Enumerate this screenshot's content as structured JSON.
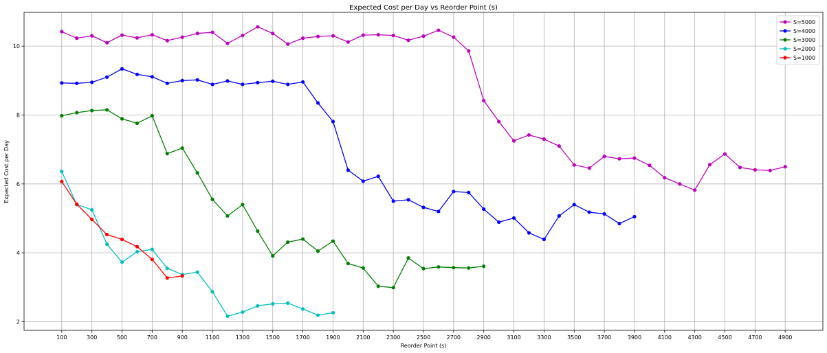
{
  "chart_data": {
    "type": "line",
    "title": "Expected Cost per Day vs Reorder Point (s)",
    "xlabel": "Reorder Point (s)",
    "ylabel": "Expected Cost per Day",
    "xlim": [
      -150,
      5150
    ],
    "ylim": [
      1.75,
      10.98
    ],
    "xticks": [
      100,
      300,
      500,
      700,
      900,
      1100,
      1300,
      1500,
      1700,
      1900,
      2100,
      2300,
      2500,
      2700,
      2900,
      3100,
      3300,
      3500,
      3700,
      3900,
      4100,
      4300,
      4500,
      4700,
      4900
    ],
    "yticks": [
      2,
      4,
      6,
      8,
      10
    ],
    "grid": true,
    "legend_position": "top-right",
    "series": [
      {
        "name": "S=5000",
        "color": "#bf00bf",
        "x": [
          100,
          200,
          300,
          400,
          500,
          600,
          700,
          800,
          900,
          1000,
          1100,
          1200,
          1300,
          1400,
          1500,
          1600,
          1700,
          1800,
          1900,
          2000,
          2100,
          2200,
          2300,
          2400,
          2500,
          2600,
          2700,
          2800,
          2900,
          3000,
          3100,
          3200,
          3300,
          3400,
          3500,
          3600,
          3700,
          3800,
          3900,
          4000,
          4100,
          4200,
          4300,
          4400,
          4500,
          4600,
          4700,
          4800,
          4900
        ],
        "y": [
          10.42,
          10.23,
          10.3,
          10.1,
          10.32,
          10.24,
          10.33,
          10.16,
          10.26,
          10.37,
          10.4,
          10.08,
          10.31,
          10.56,
          10.37,
          10.06,
          10.23,
          10.28,
          10.3,
          10.12,
          10.32,
          10.33,
          10.31,
          10.17,
          10.29,
          10.46,
          10.26,
          9.86,
          8.42,
          7.81,
          7.25,
          7.42,
          7.3,
          7.1,
          6.55,
          6.46,
          6.8,
          6.73,
          6.75,
          6.54,
          6.18,
          6.0,
          5.82,
          6.56,
          6.87,
          6.48,
          6.41,
          6.39,
          6.5
        ]
      },
      {
        "name": "S=4000",
        "color": "#0000ff",
        "x": [
          100,
          200,
          300,
          400,
          500,
          600,
          700,
          800,
          900,
          1000,
          1100,
          1200,
          1300,
          1400,
          1500,
          1600,
          1700,
          1800,
          1900,
          2000,
          2100,
          2200,
          2300,
          2400,
          2500,
          2600,
          2700,
          2800,
          2900,
          3000,
          3100,
          3200,
          3300,
          3400,
          3500,
          3600,
          3700,
          3800,
          3900
        ],
        "y": [
          8.93,
          8.92,
          8.95,
          9.1,
          9.34,
          9.18,
          9.11,
          8.92,
          9.0,
          9.02,
          8.89,
          8.99,
          8.89,
          8.94,
          8.98,
          8.89,
          8.96,
          8.35,
          7.81,
          6.4,
          6.08,
          6.22,
          5.5,
          5.54,
          5.32,
          5.2,
          5.78,
          5.75,
          5.27,
          4.89,
          5.01,
          4.58,
          4.39,
          5.07,
          5.4,
          5.18,
          5.13,
          4.85,
          5.05
        ]
      },
      {
        "name": "S=3000",
        "color": "#008000",
        "x": [
          100,
          200,
          300,
          400,
          500,
          600,
          700,
          800,
          900,
          1000,
          1100,
          1200,
          1300,
          1400,
          1500,
          1600,
          1700,
          1800,
          1900,
          2000,
          2100,
          2200,
          2300,
          2400,
          2500,
          2600,
          2700,
          2800,
          2900
        ],
        "y": [
          7.98,
          8.07,
          8.13,
          8.15,
          7.89,
          7.76,
          7.98,
          6.88,
          7.04,
          6.32,
          5.55,
          5.07,
          5.4,
          4.63,
          3.91,
          4.31,
          4.4,
          4.05,
          4.34,
          3.69,
          3.56,
          3.03,
          2.99,
          3.85,
          3.54,
          3.59,
          3.57,
          3.56,
          3.61
        ]
      },
      {
        "name": "S=2000",
        "color": "#00bfbf",
        "x": [
          100,
          200,
          300,
          400,
          500,
          600,
          700,
          800,
          900,
          1000,
          1100,
          1200,
          1300,
          1400,
          1500,
          1600,
          1700,
          1800,
          1900
        ],
        "y": [
          6.36,
          5.4,
          5.25,
          4.25,
          3.73,
          4.03,
          4.1,
          3.55,
          3.37,
          3.44,
          2.87,
          2.16,
          2.28,
          2.46,
          2.52,
          2.54,
          2.37,
          2.19,
          2.26
        ]
      },
      {
        "name": "S=1000",
        "color": "#ff0000",
        "x": [
          100,
          200,
          300,
          400,
          500,
          600,
          700,
          800,
          900
        ],
        "y": [
          6.07,
          5.41,
          4.97,
          4.53,
          4.39,
          4.18,
          3.81,
          3.27,
          3.33
        ]
      }
    ]
  }
}
